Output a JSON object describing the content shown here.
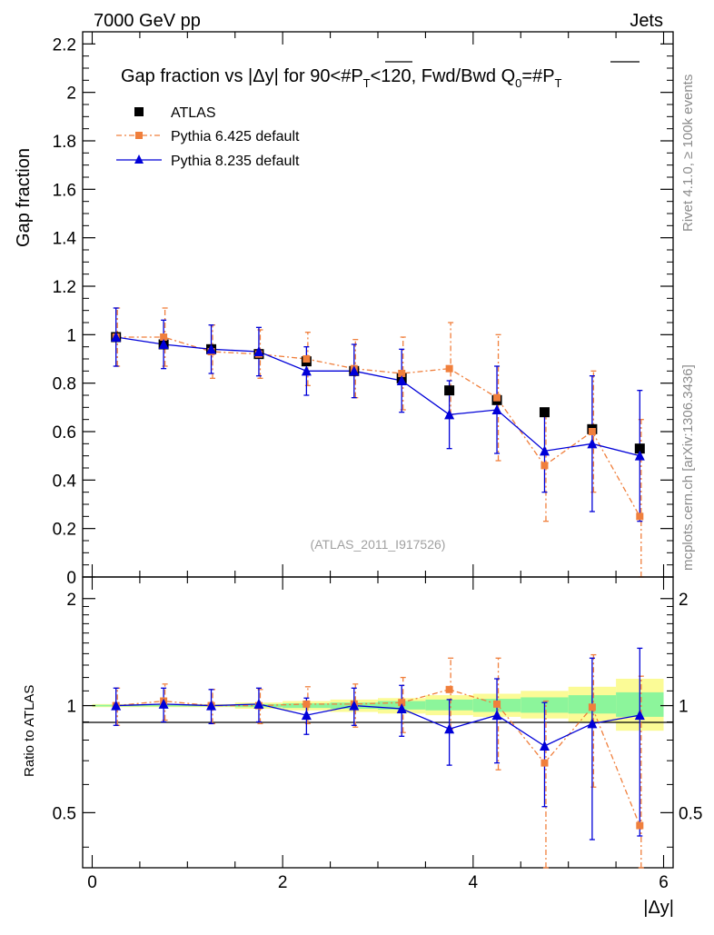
{
  "header": {
    "left": "7000 GeV pp",
    "right": "Jets"
  },
  "side_labels": {
    "top": "Rivet 4.1.0, ≥ 100k events",
    "bottom": "mcplots.cern.ch [arXiv:1306.3436]"
  },
  "colors": {
    "atlas": "#000000",
    "pythia6": "#f07f3c",
    "pythia8": "#0000d8",
    "band_inner": "#8cf59b",
    "band_outer": "#fbfb96"
  },
  "chart_data": [
    {
      "type": "scatter",
      "title": "Gap fraction vs |Δy| for 90<#P̅T<120, Fwd/Bwd Q0=#P̅T",
      "title_main": "Gap fraction vs |Δy| for 90<#",
      "title_P": "P",
      "title_sub_T": "T",
      "title_mid": "<120, Fwd/Bwd Q",
      "title_sub_0": "0",
      "title_eq": "=#",
      "ylabel": "Gap fraction",
      "watermark": "(ATLAS_2011_I917526)",
      "xlim": [
        -0.1,
        6.1
      ],
      "ylim": [
        0,
        2.25
      ],
      "y_ticks": [
        0,
        0.2,
        0.4,
        0.6,
        0.8,
        1,
        1.2,
        1.4,
        1.6,
        1.8,
        2,
        2.2
      ],
      "y_tick_labels": [
        "0",
        "0.2",
        "0.4",
        "0.6",
        "0.8",
        "1",
        "1.2",
        "1.4",
        "1.6",
        "1.8",
        "2",
        "2.2"
      ],
      "legend": [
        "ATLAS",
        "Pythia 6.425 default",
        "Pythia 8.235 default"
      ],
      "x": [
        0.25,
        0.75,
        1.25,
        1.75,
        2.25,
        2.75,
        3.25,
        3.75,
        4.25,
        4.75,
        5.25,
        5.75
      ],
      "series": [
        {
          "name": "ATLAS",
          "values": [
            0.99,
            0.96,
            0.94,
            0.92,
            0.89,
            0.85,
            0.82,
            0.77,
            0.73,
            0.68,
            0.61,
            0.53
          ]
        },
        {
          "name": "Pythia 6.425 default",
          "values": [
            0.99,
            0.99,
            0.93,
            0.92,
            0.9,
            0.86,
            0.84,
            0.86,
            0.74,
            0.46,
            0.6,
            0.25
          ],
          "err": [
            0.12,
            0.12,
            0.11,
            0.1,
            0.11,
            0.12,
            0.15,
            0.19,
            0.26,
            0.23,
            0.25,
            0.4
          ]
        },
        {
          "name": "Pythia 8.235 default",
          "values": [
            0.99,
            0.96,
            0.94,
            0.93,
            0.85,
            0.85,
            0.81,
            0.67,
            0.69,
            0.52,
            0.55,
            0.5
          ],
          "err": [
            0.12,
            0.1,
            0.1,
            0.1,
            0.1,
            0.11,
            0.13,
            0.14,
            0.18,
            0.17,
            0.28,
            0.27
          ]
        }
      ]
    },
    {
      "type": "scatter",
      "title": "Ratio to ATLAS",
      "ylabel": "Ratio to ATLAS",
      "xlabel": "|Δy|",
      "xlim": [
        -0.1,
        6.1
      ],
      "ylim": [
        0.35,
        2.3
      ],
      "log_y": true,
      "x_ticks": [
        0,
        2,
        4,
        6
      ],
      "x_tick_labels": [
        "0",
        "2",
        "4",
        "6"
      ],
      "y_ticks": [
        0.5,
        1,
        2
      ],
      "y_tick_labels": [
        "0.5",
        "1",
        "2"
      ],
      "x": [
        0.25,
        0.75,
        1.25,
        1.75,
        2.25,
        2.75,
        3.25,
        3.75,
        4.25,
        4.75,
        5.25,
        5.75
      ],
      "bands": {
        "inner": [
          [
            0.995,
            1.005
          ],
          [
            0.995,
            1.005
          ],
          [
            0.995,
            1.005
          ],
          [
            0.99,
            1.01
          ],
          [
            0.985,
            1.015
          ],
          [
            0.98,
            1.02
          ],
          [
            0.975,
            1.03
          ],
          [
            0.97,
            1.04
          ],
          [
            0.96,
            1.045
          ],
          [
            0.955,
            1.055
          ],
          [
            0.95,
            1.07
          ],
          [
            0.93,
            1.09
          ]
        ],
        "outer": [
          [
            0.99,
            1.01
          ],
          [
            0.99,
            1.01
          ],
          [
            0.99,
            1.01
          ],
          [
            0.98,
            1.02
          ],
          [
            0.97,
            1.03
          ],
          [
            0.96,
            1.04
          ],
          [
            0.95,
            1.05
          ],
          [
            0.94,
            1.07
          ],
          [
            0.93,
            1.08
          ],
          [
            0.92,
            1.1
          ],
          [
            0.9,
            1.13
          ],
          [
            0.85,
            1.19
          ]
        ]
      },
      "series": [
        {
          "name": "Pythia 6.425 default",
          "values": [
            1.0,
            1.03,
            1.0,
            1.0,
            1.01,
            1.01,
            1.02,
            1.11,
            1.01,
            0.69,
            0.99,
            0.46
          ],
          "err_lo": [
            0.12,
            0.12,
            0.11,
            0.11,
            0.12,
            0.14,
            0.18,
            0.25,
            0.35,
            0.34,
            0.4,
            0.46
          ],
          "err_hi": [
            0.12,
            0.12,
            0.11,
            0.11,
            0.12,
            0.14,
            0.18,
            0.25,
            0.35,
            0.34,
            0.4,
            0.75
          ]
        },
        {
          "name": "Pythia 8.235 default",
          "values": [
            1.0,
            1.01,
            1.0,
            1.01,
            0.94,
            1.0,
            0.98,
            0.86,
            0.94,
            0.77,
            0.89,
            0.94
          ],
          "err_lo": [
            0.12,
            0.11,
            0.11,
            0.11,
            0.11,
            0.12,
            0.16,
            0.18,
            0.25,
            0.25,
            0.47,
            0.51
          ],
          "err_hi": [
            0.12,
            0.11,
            0.11,
            0.11,
            0.11,
            0.12,
            0.16,
            0.18,
            0.25,
            0.25,
            0.47,
            0.51
          ]
        }
      ]
    }
  ]
}
